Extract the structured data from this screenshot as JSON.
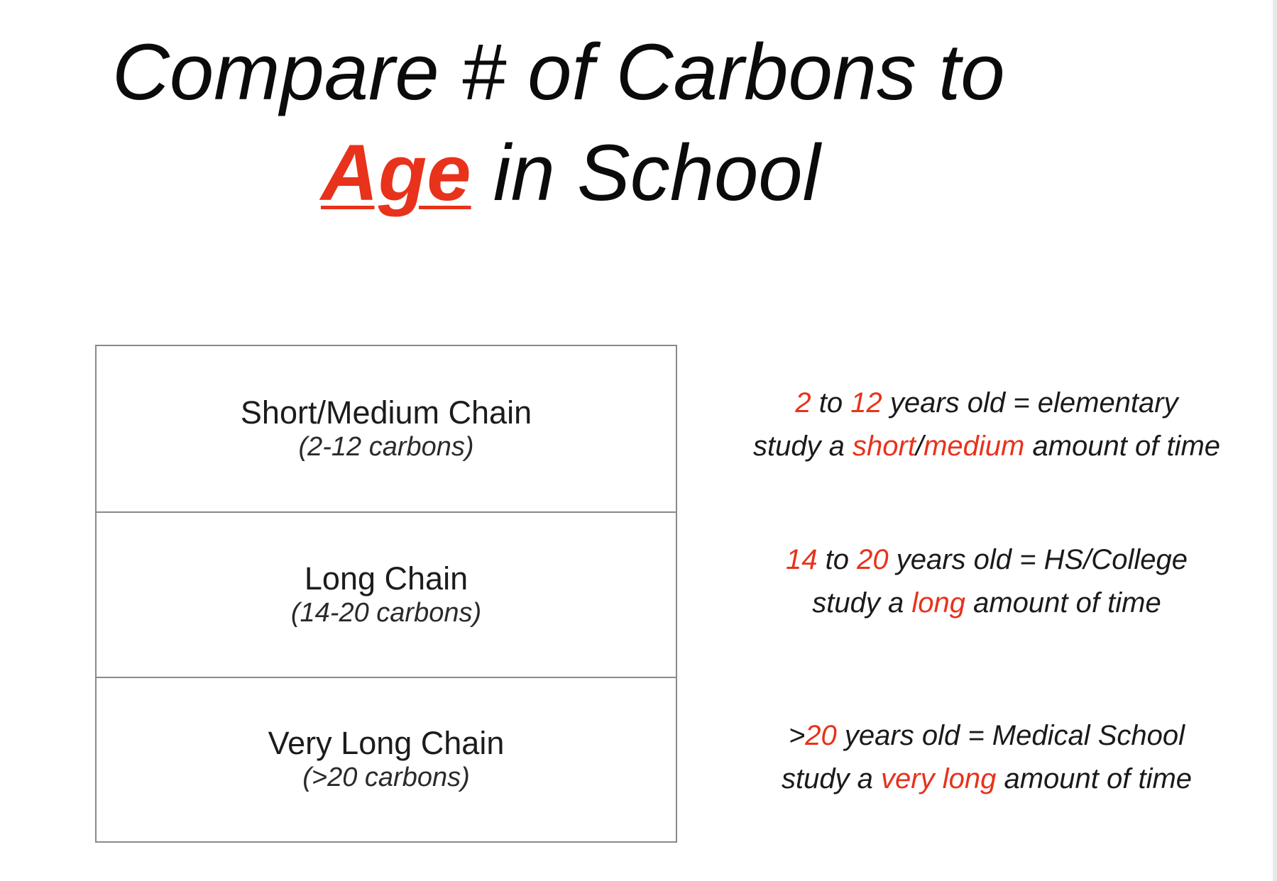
{
  "colors": {
    "accent": "#e8321c",
    "text": "#111111",
    "border": "#8a8a8a",
    "background": "#ffffff"
  },
  "title": {
    "line1": "Compare # of Carbons to",
    "accent_word": "Age",
    "line2_rest": " in School"
  },
  "chains": [
    {
      "name": "Short/Medium Chain",
      "range": "(2-12 carbons)"
    },
    {
      "name": "Long Chain",
      "range": "(14-20 carbons)"
    },
    {
      "name": "Very Long Chain",
      "range": "(>20 carbons)"
    }
  ],
  "ages": [
    {
      "line1": {
        "num1": "2",
        "to": " to ",
        "num2": "12",
        "rest": " years old = elementary"
      },
      "line2": {
        "pre": "study a ",
        "hl1": "short",
        "sep": "/",
        "hl2": "medium",
        "post": " amount of time"
      }
    },
    {
      "line1": {
        "num1": "14",
        "to": " to ",
        "num2": "20",
        "rest": " years old = HS/College"
      },
      "line2": {
        "pre": "study a ",
        "hl": "long",
        "post": " amount of time"
      }
    },
    {
      "line1": {
        "prefix": ">",
        "num": "20",
        "rest": " years old = Medical School"
      },
      "line2": {
        "pre": "study a ",
        "hl": "very long",
        "post": " amount of time"
      }
    }
  ]
}
